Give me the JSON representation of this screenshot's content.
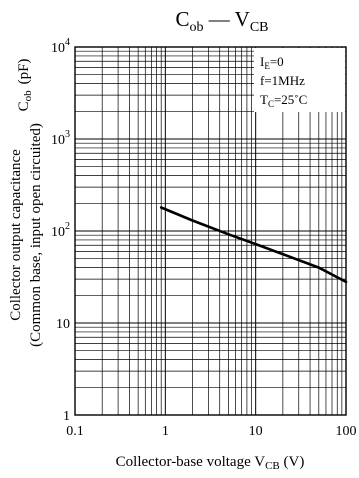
{
  "chart_data": {
    "type": "line",
    "title": {
      "main": "C",
      "main_sub": "ob",
      "dash": " — V",
      "dash_sub": "CB"
    },
    "xlabel": {
      "main": "Collector-base voltage  V",
      "sub": "CB",
      "unit": "  (V)"
    },
    "ylabel": {
      "line1": "Collector output capacitance",
      "line2": "(Common base, input open circuited)",
      "symbol_main": "C",
      "symbol_sub": "ob",
      "unit": "(pF)"
    },
    "xscale": "log",
    "yscale": "log",
    "xlim": [
      0.1,
      100
    ],
    "ylim": [
      1,
      10000
    ],
    "x_ticks": [
      {
        "value": 0.1,
        "label": "0.1"
      },
      {
        "value": 1,
        "label": "1"
      },
      {
        "value": 10,
        "label": "10"
      },
      {
        "value": 100,
        "label": "100"
      }
    ],
    "y_ticks": [
      {
        "value": 1,
        "base": "1",
        "exp": ""
      },
      {
        "value": 10,
        "base": "10",
        "exp": ""
      },
      {
        "value": 100,
        "base": "10",
        "exp": "2"
      },
      {
        "value": 1000,
        "base": "10",
        "exp": "3"
      },
      {
        "value": 10000,
        "base": "10",
        "exp": "4"
      }
    ],
    "grid": true,
    "legend_position": "top-right",
    "conditions": [
      {
        "main": "I",
        "sub": "E",
        "rest": "=0"
      },
      {
        "main": "f=1MHz",
        "sub": "",
        "rest": ""
      },
      {
        "main": "T",
        "sub": "C",
        "rest": "=25˚C"
      }
    ],
    "series": [
      {
        "x": [
          0.9,
          2,
          5,
          10,
          20,
          50,
          100
        ],
        "y": [
          180,
          130,
          92,
          72,
          56,
          40,
          28
        ]
      }
    ]
  }
}
